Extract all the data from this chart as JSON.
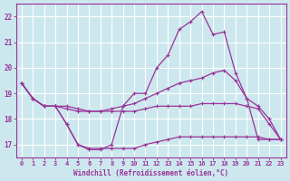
{
  "xlabel": "Windchill (Refroidissement éolien,°C)",
  "bg_color": "#cce8ee",
  "grid_color": "#ffffff",
  "line_color": "#993399",
  "xlim": [
    -0.5,
    23.5
  ],
  "ylim": [
    16.5,
    22.5
  ],
  "xticks": [
    0,
    1,
    2,
    3,
    4,
    5,
    6,
    7,
    8,
    9,
    10,
    11,
    12,
    13,
    14,
    15,
    16,
    17,
    18,
    19,
    20,
    21,
    22,
    23
  ],
  "yticks": [
    17,
    18,
    19,
    20,
    21,
    22
  ],
  "curves": [
    {
      "comment": "top curve - peaks at 22.2",
      "x": [
        0,
        1,
        2,
        3,
        4,
        5,
        6,
        7,
        8,
        9,
        10,
        11,
        12,
        13,
        14,
        15,
        16,
        17,
        18,
        19,
        20,
        21,
        22,
        23
      ],
      "y": [
        19.4,
        18.8,
        18.5,
        18.5,
        17.8,
        17.0,
        16.8,
        16.8,
        17.0,
        18.5,
        19.0,
        19.0,
        20.0,
        20.5,
        21.5,
        21.8,
        22.2,
        21.3,
        21.4,
        19.8,
        18.8,
        17.2,
        17.2,
        17.2
      ]
    },
    {
      "comment": "upper-middle curve - gradual rise to ~19.8",
      "x": [
        0,
        1,
        2,
        3,
        4,
        5,
        6,
        7,
        8,
        9,
        10,
        11,
        12,
        13,
        14,
        15,
        16,
        17,
        18,
        19,
        20,
        21,
        22,
        23
      ],
      "y": [
        19.4,
        18.8,
        18.5,
        18.5,
        18.5,
        18.4,
        18.3,
        18.3,
        18.4,
        18.5,
        18.6,
        18.8,
        19.0,
        19.2,
        19.4,
        19.5,
        19.6,
        19.8,
        19.9,
        19.5,
        18.8,
        18.5,
        18.0,
        17.2
      ]
    },
    {
      "comment": "lower-middle curve - stays flat ~18.3-18.6",
      "x": [
        0,
        1,
        2,
        3,
        4,
        5,
        6,
        7,
        8,
        9,
        10,
        11,
        12,
        13,
        14,
        15,
        16,
        17,
        18,
        19,
        20,
        21,
        22,
        23
      ],
      "y": [
        19.4,
        18.8,
        18.5,
        18.5,
        18.4,
        18.3,
        18.3,
        18.3,
        18.3,
        18.3,
        18.3,
        18.4,
        18.5,
        18.5,
        18.5,
        18.5,
        18.6,
        18.6,
        18.6,
        18.6,
        18.5,
        18.4,
        17.8,
        17.2
      ]
    },
    {
      "comment": "bottom curve - dips to 16.8, flat at 17.3",
      "x": [
        0,
        1,
        2,
        3,
        4,
        5,
        6,
        7,
        8,
        9,
        10,
        11,
        12,
        13,
        14,
        15,
        16,
        17,
        18,
        19,
        20,
        21,
        22,
        23
      ],
      "y": [
        19.4,
        18.8,
        18.5,
        18.5,
        17.8,
        17.0,
        16.85,
        16.85,
        16.85,
        16.85,
        16.85,
        17.0,
        17.1,
        17.2,
        17.3,
        17.3,
        17.3,
        17.3,
        17.3,
        17.3,
        17.3,
        17.3,
        17.2,
        17.2
      ]
    }
  ]
}
